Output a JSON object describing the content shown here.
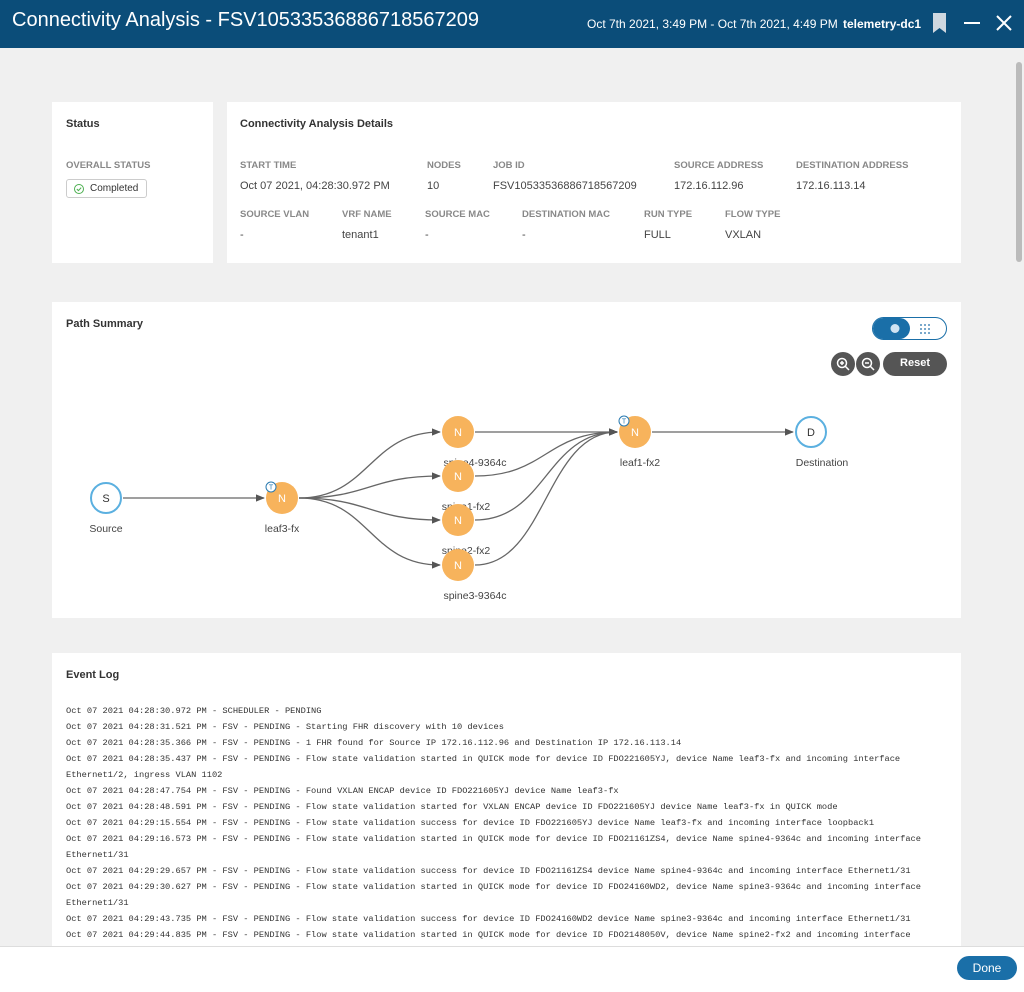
{
  "header": {
    "title": "Connectivity Analysis - FSV10533536886718567209",
    "time_range": "Oct 7th 2021, 3:49 PM - Oct 7th 2021, 4:49 PM",
    "fabric": "telemetry-dc1"
  },
  "status": {
    "title": "Status",
    "label": "OVERALL STATUS",
    "value": "Completed"
  },
  "details": {
    "title": "Connectivity Analysis Details",
    "fields": [
      {
        "label": "START TIME",
        "value": "Oct 07 2021, 04:28:30.972 PM"
      },
      {
        "label": "NODES",
        "value": "10"
      },
      {
        "label": "JOB ID",
        "value": "FSV10533536886718567209"
      },
      {
        "label": "SOURCE ADDRESS",
        "value": "172.16.112.96"
      },
      {
        "label": "DESTINATION ADDRESS",
        "value": "172.16.113.14"
      },
      {
        "label": "SOURCE VLAN",
        "value": "-"
      },
      {
        "label": "VRF NAME",
        "value": "tenant1"
      },
      {
        "label": "SOURCE MAC",
        "value": "-"
      },
      {
        "label": "DESTINATION MAC",
        "value": "-"
      },
      {
        "label": "RUN TYPE",
        "value": "FULL"
      },
      {
        "label": "FLOW TYPE",
        "value": "VXLAN"
      }
    ]
  },
  "path_summary": {
    "title": "Path Summary",
    "reset": "Reset",
    "nodes": [
      {
        "letter": "S",
        "label": "Source"
      },
      {
        "letter": "N",
        "label": "leaf3-fx",
        "badge": "T"
      },
      {
        "letter": "N",
        "label": "spine4-9364c"
      },
      {
        "letter": "N",
        "label": "spine1-fx2"
      },
      {
        "letter": "N",
        "label": "spine2-fx2"
      },
      {
        "letter": "N",
        "label": "spine3-9364c"
      },
      {
        "letter": "N",
        "label": "leaf1-fx2",
        "badge": "T"
      },
      {
        "letter": "D",
        "label": "Destination"
      }
    ]
  },
  "event_log": {
    "title": "Event Log",
    "entries": [
      "Oct 07 2021 04:28:30.972 PM - SCHEDULER - PENDING",
      "Oct 07 2021 04:28:31.521 PM - FSV - PENDING - Starting FHR discovery with 10 devices",
      "Oct 07 2021 04:28:35.366 PM - FSV - PENDING - 1 FHR found for Source IP 172.16.112.96 and Destination IP 172.16.113.14",
      "Oct 07 2021 04:28:35.437 PM - FSV - PENDING - Flow state validation started in QUICK mode for device ID FDO221605YJ, device Name leaf3-fx and incoming interface Ethernet1/2, ingress VLAN 1102",
      "Oct 07 2021 04:28:47.754 PM - FSV - PENDING - Found VXLAN ENCAP device ID FDO221605YJ device Name leaf3-fx",
      "Oct 07 2021 04:28:48.591 PM - FSV - PENDING - Flow state validation started for VXLAN ENCAP device ID FDO221605YJ device Name leaf3-fx in QUICK mode",
      "Oct 07 2021 04:29:15.554 PM - FSV - PENDING - Flow state validation success for device ID FDO221605YJ device Name leaf3-fx and incoming interface loopback1",
      "Oct 07 2021 04:29:16.573 PM - FSV - PENDING - Flow state validation started in QUICK mode for device ID FDO21161ZS4, device Name spine4-9364c and incoming interface Ethernet1/31",
      "Oct 07 2021 04:29:29.657 PM - FSV - PENDING - Flow state validation success for device ID FDO21161ZS4 device Name spine4-9364c and incoming interface Ethernet1/31",
      "Oct 07 2021 04:29:30.627 PM - FSV - PENDING - Flow state validation started in QUICK mode for device ID FDO24160WD2, device Name spine3-9364c and incoming interface Ethernet1/31",
      "Oct 07 2021 04:29:43.735 PM - FSV - PENDING - Flow state validation success for device ID FDO24160WD2 device Name spine3-9364c and incoming interface Ethernet1/31",
      "Oct 07 2021 04:29:44.835 PM - FSV - PENDING - Flow state validation started in QUICK mode for device ID FDO2148050V, device Name spine2-fx2 and incoming interface"
    ]
  },
  "footer": {
    "done": "Done"
  }
}
